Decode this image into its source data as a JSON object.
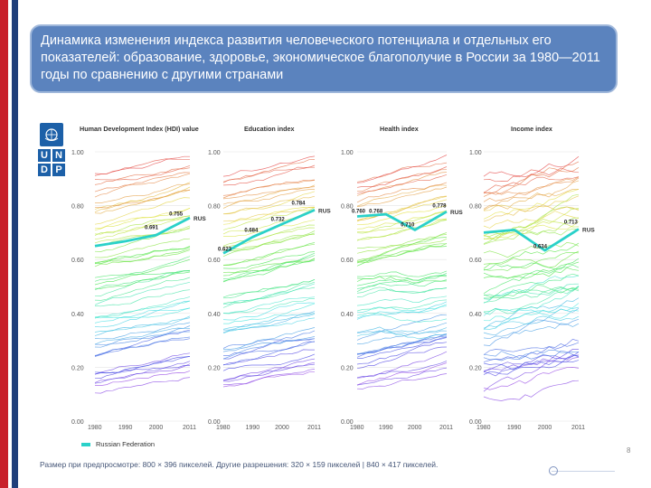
{
  "title": "Динамика изменения индекса развития человеческого потенциала и отдельных его показателей: образование, здоровье, экономическое благополучие в России за 1980—2011 годы по сравнению с другими странами",
  "logo": {
    "emblem": "un-emblem-icon",
    "letters": [
      "U",
      "N",
      "D",
      "P"
    ]
  },
  "legend": {
    "label": "Russian Federation",
    "color": "#2ad1c9"
  },
  "caption": "Размер при предпросмотре: 800 × 396 пикселей. Другие разрешения: 320 × 159 пикселей | 840 × 417 пикселей.",
  "side_mark": "8",
  "colors": {
    "highlight": "#2ad1c9",
    "title_bg": "#5b83be",
    "bar_red": "#c8202a",
    "bar_blue": "#1f3f7a"
  },
  "chart_data": [
    {
      "type": "line",
      "title": "Human Development Index (HDI) value",
      "x": [
        1980,
        1990,
        2000,
        2011
      ],
      "x_ticks": [
        "1980",
        "1990",
        "2000",
        "2011"
      ],
      "ylim": [
        0,
        1
      ],
      "y_ticks": [
        "1.00",
        "0.80",
        "0.60",
        "0.40",
        "0.20",
        "0.00"
      ],
      "series": [
        {
          "name": "Russian Federation",
          "highlight": true,
          "label": "RUS",
          "values": [
            0.65,
            0.668,
            0.691,
            0.755
          ]
        }
      ],
      "annotations": [
        {
          "text": "0.755",
          "x": 2006,
          "y": 0.77
        },
        {
          "text": "0.691",
          "x": 1998,
          "y": 0.72
        }
      ]
    },
    {
      "type": "line",
      "title": "Education index",
      "x": [
        1980,
        1990,
        2000,
        2011
      ],
      "x_ticks": [
        "1980",
        "1990",
        "2000",
        "2011"
      ],
      "ylim": [
        0,
        1
      ],
      "y_ticks": [
        "1.00",
        "0.80",
        "0.60",
        "0.40",
        "0.20",
        "0.00"
      ],
      "series": [
        {
          "name": "Russian Federation",
          "highlight": true,
          "label": "RUS",
          "values": [
            0.623,
            0.684,
            0.732,
            0.784
          ]
        }
      ],
      "annotations": [
        {
          "text": "0.784",
          "x": 2005,
          "y": 0.81
        },
        {
          "text": "0.732",
          "x": 1998,
          "y": 0.75
        },
        {
          "text": "0.684",
          "x": 1989,
          "y": 0.71
        },
        {
          "text": "0.623",
          "x": 1980,
          "y": 0.64
        }
      ]
    },
    {
      "type": "line",
      "title": "Health index",
      "x": [
        1980,
        1990,
        2000,
        2011
      ],
      "x_ticks": [
        "1980",
        "1990",
        "2000",
        "2011"
      ],
      "ylim": [
        0,
        1
      ],
      "y_ticks": [
        "1.00",
        "0.80",
        "0.60",
        "0.40",
        "0.20",
        "0.00"
      ],
      "series": [
        {
          "name": "Russian Federation",
          "highlight": true,
          "label": "RUS",
          "values": [
            0.76,
            0.768,
            0.71,
            0.778
          ]
        }
      ],
      "annotations": [
        {
          "text": "0.778",
          "x": 2008,
          "y": 0.8
        },
        {
          "text": "0.768",
          "x": 1986,
          "y": 0.78
        },
        {
          "text": "0.710",
          "x": 1997,
          "y": 0.73
        },
        {
          "text": "0.760",
          "x": 1980,
          "y": 0.78
        }
      ]
    },
    {
      "type": "line",
      "title": "Income index",
      "x": [
        1980,
        1990,
        2000,
        2011
      ],
      "x_ticks": [
        "1980",
        "1990",
        "2000",
        "2011"
      ],
      "ylim": [
        0,
        1
      ],
      "y_ticks": [
        "1.00",
        "0.80",
        "0.60",
        "0.40",
        "0.20",
        "0.00"
      ],
      "series": [
        {
          "name": "Russian Federation",
          "highlight": true,
          "label": "RUS",
          "values": [
            0.7,
            0.71,
            0.634,
            0.713
          ]
        }
      ],
      "annotations": [
        {
          "text": "0.713",
          "x": 2008,
          "y": 0.74
        },
        {
          "text": "0.634",
          "x": 1998,
          "y": 0.65
        }
      ]
    }
  ]
}
